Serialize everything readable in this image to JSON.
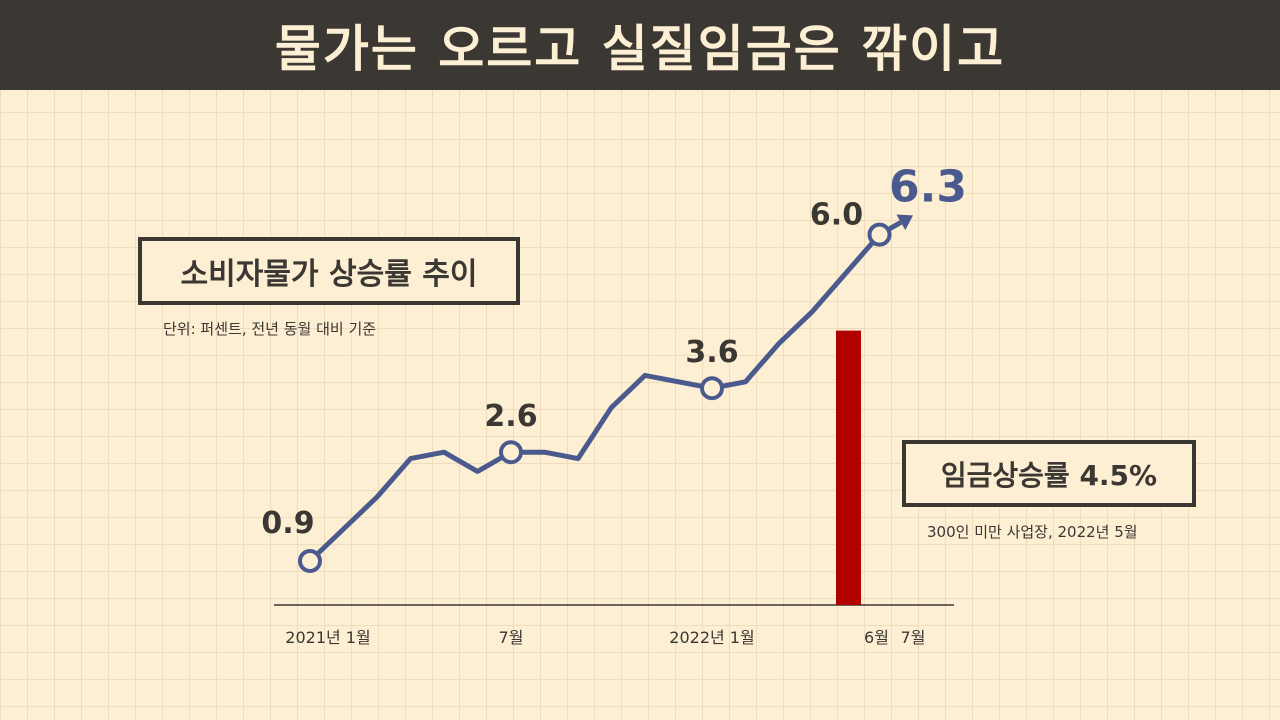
{
  "header": {
    "title": "물가는 오르고 실질임금은 깎이고"
  },
  "legend_box": {
    "title": "소비자물가 상승률 추이",
    "unit_note": "단위: 퍼센트, 전년 동월 대비 기준"
  },
  "wage_box": {
    "title": "임금상승률 4.5%",
    "note": "300인 미만 사업장, 2022년 5월"
  },
  "chart_data": {
    "type": "line",
    "series": [
      {
        "values": [
          0.9,
          1.4,
          1.9,
          2.5,
          2.6,
          2.3,
          2.6,
          2.6,
          2.5,
          3.3,
          3.8,
          3.7,
          3.6,
          3.7,
          4.3,
          4.8,
          5.4,
          6.0,
          6.3
        ]
      }
    ],
    "x": [
      "2021-01",
      "2021-02",
      "2021-03",
      "2021-04",
      "2021-05",
      "2021-06",
      "2021-07",
      "2021-08",
      "2021-09",
      "2021-10",
      "2021-11",
      "2021-12",
      "2022-01",
      "2022-02",
      "2022-03",
      "2022-04",
      "2022-05",
      "2022-06",
      "2022-07"
    ],
    "x_tick_labels": [
      {
        "index": 0,
        "label": "2021년 1월"
      },
      {
        "index": 6,
        "label": "7월"
      },
      {
        "index": 12,
        "label": "2022년 1월"
      },
      {
        "index": 17,
        "label": "6월"
      },
      {
        "index": 18,
        "label": "7월"
      }
    ],
    "data_labels": [
      {
        "index": 0,
        "label": "0.9"
      },
      {
        "index": 6,
        "label": "2.6"
      },
      {
        "index": 12,
        "label": "3.6"
      },
      {
        "index": 17,
        "label": "6.0"
      },
      {
        "index": 18,
        "label": "6.3"
      }
    ],
    "marked_points": [
      0,
      6,
      12,
      17
    ],
    "wage_bar": {
      "value": 4.5,
      "position": "2022-05"
    },
    "line_color": "#4a5a8e",
    "bar_color": "#b00000",
    "grid": false
  }
}
